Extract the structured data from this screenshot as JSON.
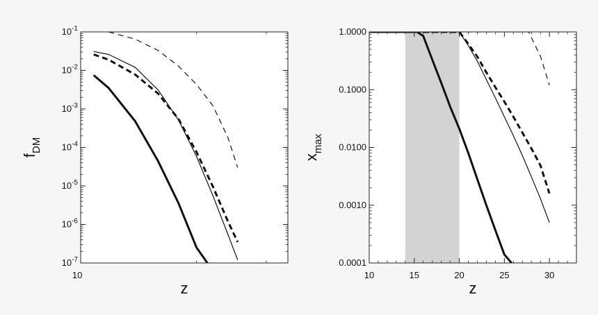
{
  "chart_data": [
    {
      "type": "line",
      "xlabel": "z",
      "ylabel": "f",
      "ylabel_sub": "DM",
      "xscale": "log",
      "yscale": "log",
      "xlim": [
        10.2,
        34
      ],
      "ylim": [
        1e-07,
        0.1
      ],
      "grid": false,
      "x_ticks": [
        {
          "value": 10,
          "label": "10"
        }
      ],
      "y_ticks": [
        {
          "value": 0.1,
          "base": "10",
          "exp": "-1"
        },
        {
          "value": 0.01,
          "base": "10",
          "exp": "-2"
        },
        {
          "value": 0.001,
          "base": "10",
          "exp": "-3"
        },
        {
          "value": 0.0001,
          "base": "10",
          "exp": "-4"
        },
        {
          "value": 1e-05,
          "base": "10",
          "exp": "-5"
        },
        {
          "value": 1e-06,
          "base": "10",
          "exp": "-6"
        },
        {
          "value": 1e-07,
          "base": "10",
          "exp": "-7"
        }
      ],
      "series": [
        {
          "style": "thick-solid",
          "points": [
            [
              11,
              0.0075
            ],
            [
              12,
              0.0035
            ],
            [
              14,
              0.00048
            ],
            [
              16,
              4.4e-05
            ],
            [
              18,
              3.6e-06
            ],
            [
              20,
              2.5e-07
            ],
            [
              21.3,
              1e-07
            ]
          ]
        },
        {
          "style": "thin-solid",
          "points": [
            [
              11,
              0.031
            ],
            [
              12,
              0.026
            ],
            [
              14,
              0.012
            ],
            [
              16,
              0.0031
            ],
            [
              18,
              0.00052
            ],
            [
              20,
              5.8e-05
            ],
            [
              22,
              5.5e-06
            ],
            [
              24,
              5.5e-07
            ],
            [
              25.4,
              1.2e-07
            ]
          ]
        },
        {
          "style": "thick-dashed",
          "points": [
            [
              11,
              0.026
            ],
            [
              12,
              0.019
            ],
            [
              14,
              0.0078
            ],
            [
              16,
              0.0025
            ],
            [
              18,
              0.00055
            ],
            [
              20,
              7.5e-05
            ],
            [
              22,
              9.5e-06
            ],
            [
              24,
              1.2e-06
            ],
            [
              25.4,
              3.5e-07
            ]
          ]
        },
        {
          "style": "thin-dashed",
          "points": [
            [
              12,
              0.1
            ],
            [
              14,
              0.065
            ],
            [
              16,
              0.033
            ],
            [
              18,
              0.013
            ],
            [
              20,
              0.0043
            ],
            [
              22,
              0.0012
            ],
            [
              24,
              0.00018
            ],
            [
              25.4,
              3e-05
            ]
          ]
        }
      ]
    },
    {
      "type": "line",
      "xlabel": "z",
      "ylabel": "x",
      "ylabel_sub": "max",
      "xscale": "linear",
      "yscale": "log",
      "xlim": [
        10,
        33
      ],
      "ylim": [
        0.0001,
        1.0
      ],
      "grid": false,
      "shaded_x_range": [
        14,
        20
      ],
      "x_ticks": [
        {
          "value": 10,
          "label": "10"
        },
        {
          "value": 15,
          "label": "15"
        },
        {
          "value": 20,
          "label": "20"
        },
        {
          "value": 25,
          "label": "25"
        },
        {
          "value": 30,
          "label": "30"
        }
      ],
      "y_ticks": [
        {
          "value": 1.0,
          "label": "1.0000"
        },
        {
          "value": 0.1,
          "label": "0.1000"
        },
        {
          "value": 0.01,
          "label": "0.0100"
        },
        {
          "value": 0.001,
          "label": "0.0010"
        },
        {
          "value": 0.0001,
          "label": "0.0001"
        }
      ],
      "series": [
        {
          "style": "thick-solid",
          "points": [
            [
              10,
              1.0
            ],
            [
              15.3,
              1.0
            ],
            [
              16,
              0.85
            ],
            [
              17,
              0.33
            ],
            [
              18,
              0.13
            ],
            [
              19,
              0.05
            ],
            [
              20,
              0.021
            ],
            [
              21,
              0.008
            ],
            [
              22,
              0.0028
            ],
            [
              23,
              0.001
            ],
            [
              24,
              0.00037
            ],
            [
              25,
              0.00014
            ],
            [
              25.8,
              0.0001
            ]
          ]
        },
        {
          "style": "thin-solid",
          "points": [
            [
              10,
              1.0
            ],
            [
              20,
              1.0
            ],
            [
              21,
              0.58
            ],
            [
              22,
              0.31
            ],
            [
              23,
              0.15
            ],
            [
              24,
              0.072
            ],
            [
              25,
              0.034
            ],
            [
              26,
              0.016
            ],
            [
              27,
              0.0072
            ],
            [
              28,
              0.0031
            ],
            [
              29,
              0.0013
            ],
            [
              30,
              0.0005
            ]
          ]
        },
        {
          "style": "thick-dashed",
          "points": [
            [
              10,
              1.0
            ],
            [
              20,
              1.0
            ],
            [
              21,
              0.62
            ],
            [
              22,
              0.37
            ],
            [
              23,
              0.2
            ],
            [
              24,
              0.11
            ],
            [
              25,
              0.062
            ],
            [
              26,
              0.034
            ],
            [
              27,
              0.018
            ],
            [
              28,
              0.0096
            ],
            [
              29,
              0.0049
            ],
            [
              30,
              0.0016
            ]
          ]
        },
        {
          "style": "thin-dashed",
          "points": [
            [
              10,
              1.0
            ],
            [
              27.7,
              1.0
            ],
            [
              29,
              0.38
            ],
            [
              30,
              0.12
            ]
          ]
        }
      ]
    }
  ]
}
